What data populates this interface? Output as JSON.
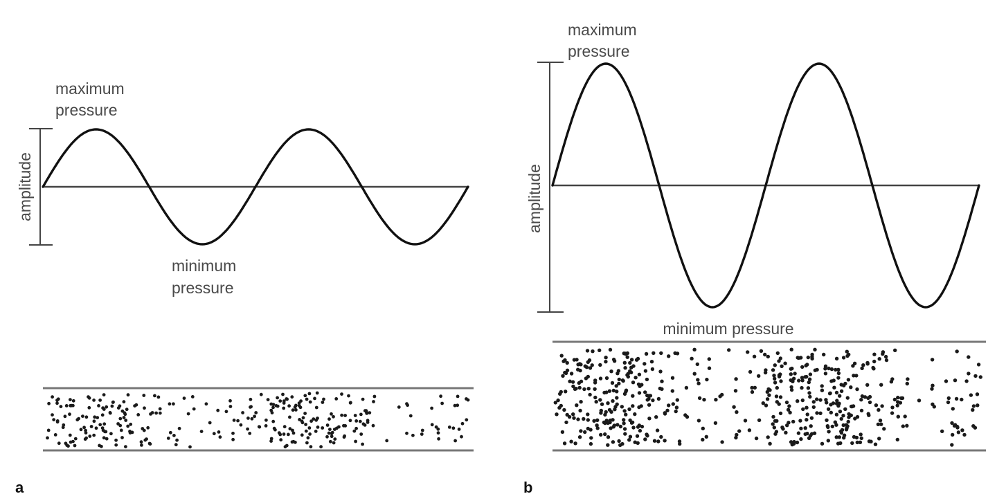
{
  "panels": [
    {
      "id": "a",
      "letter": "a",
      "max_label_1": "maximum",
      "max_label_2": "pressure",
      "min_label_1": "minimum",
      "min_label_2": "pressure",
      "amplitude_label": "amplitude",
      "relative_amplitude": 1.0,
      "cycles": 2
    },
    {
      "id": "b",
      "letter": "b",
      "max_label_1": "maximum",
      "max_label_2": "pressure",
      "min_label": "minimum pressure",
      "amplitude_label": "amplitude",
      "relative_amplitude": 2.2,
      "cycles": 2
    }
  ]
}
